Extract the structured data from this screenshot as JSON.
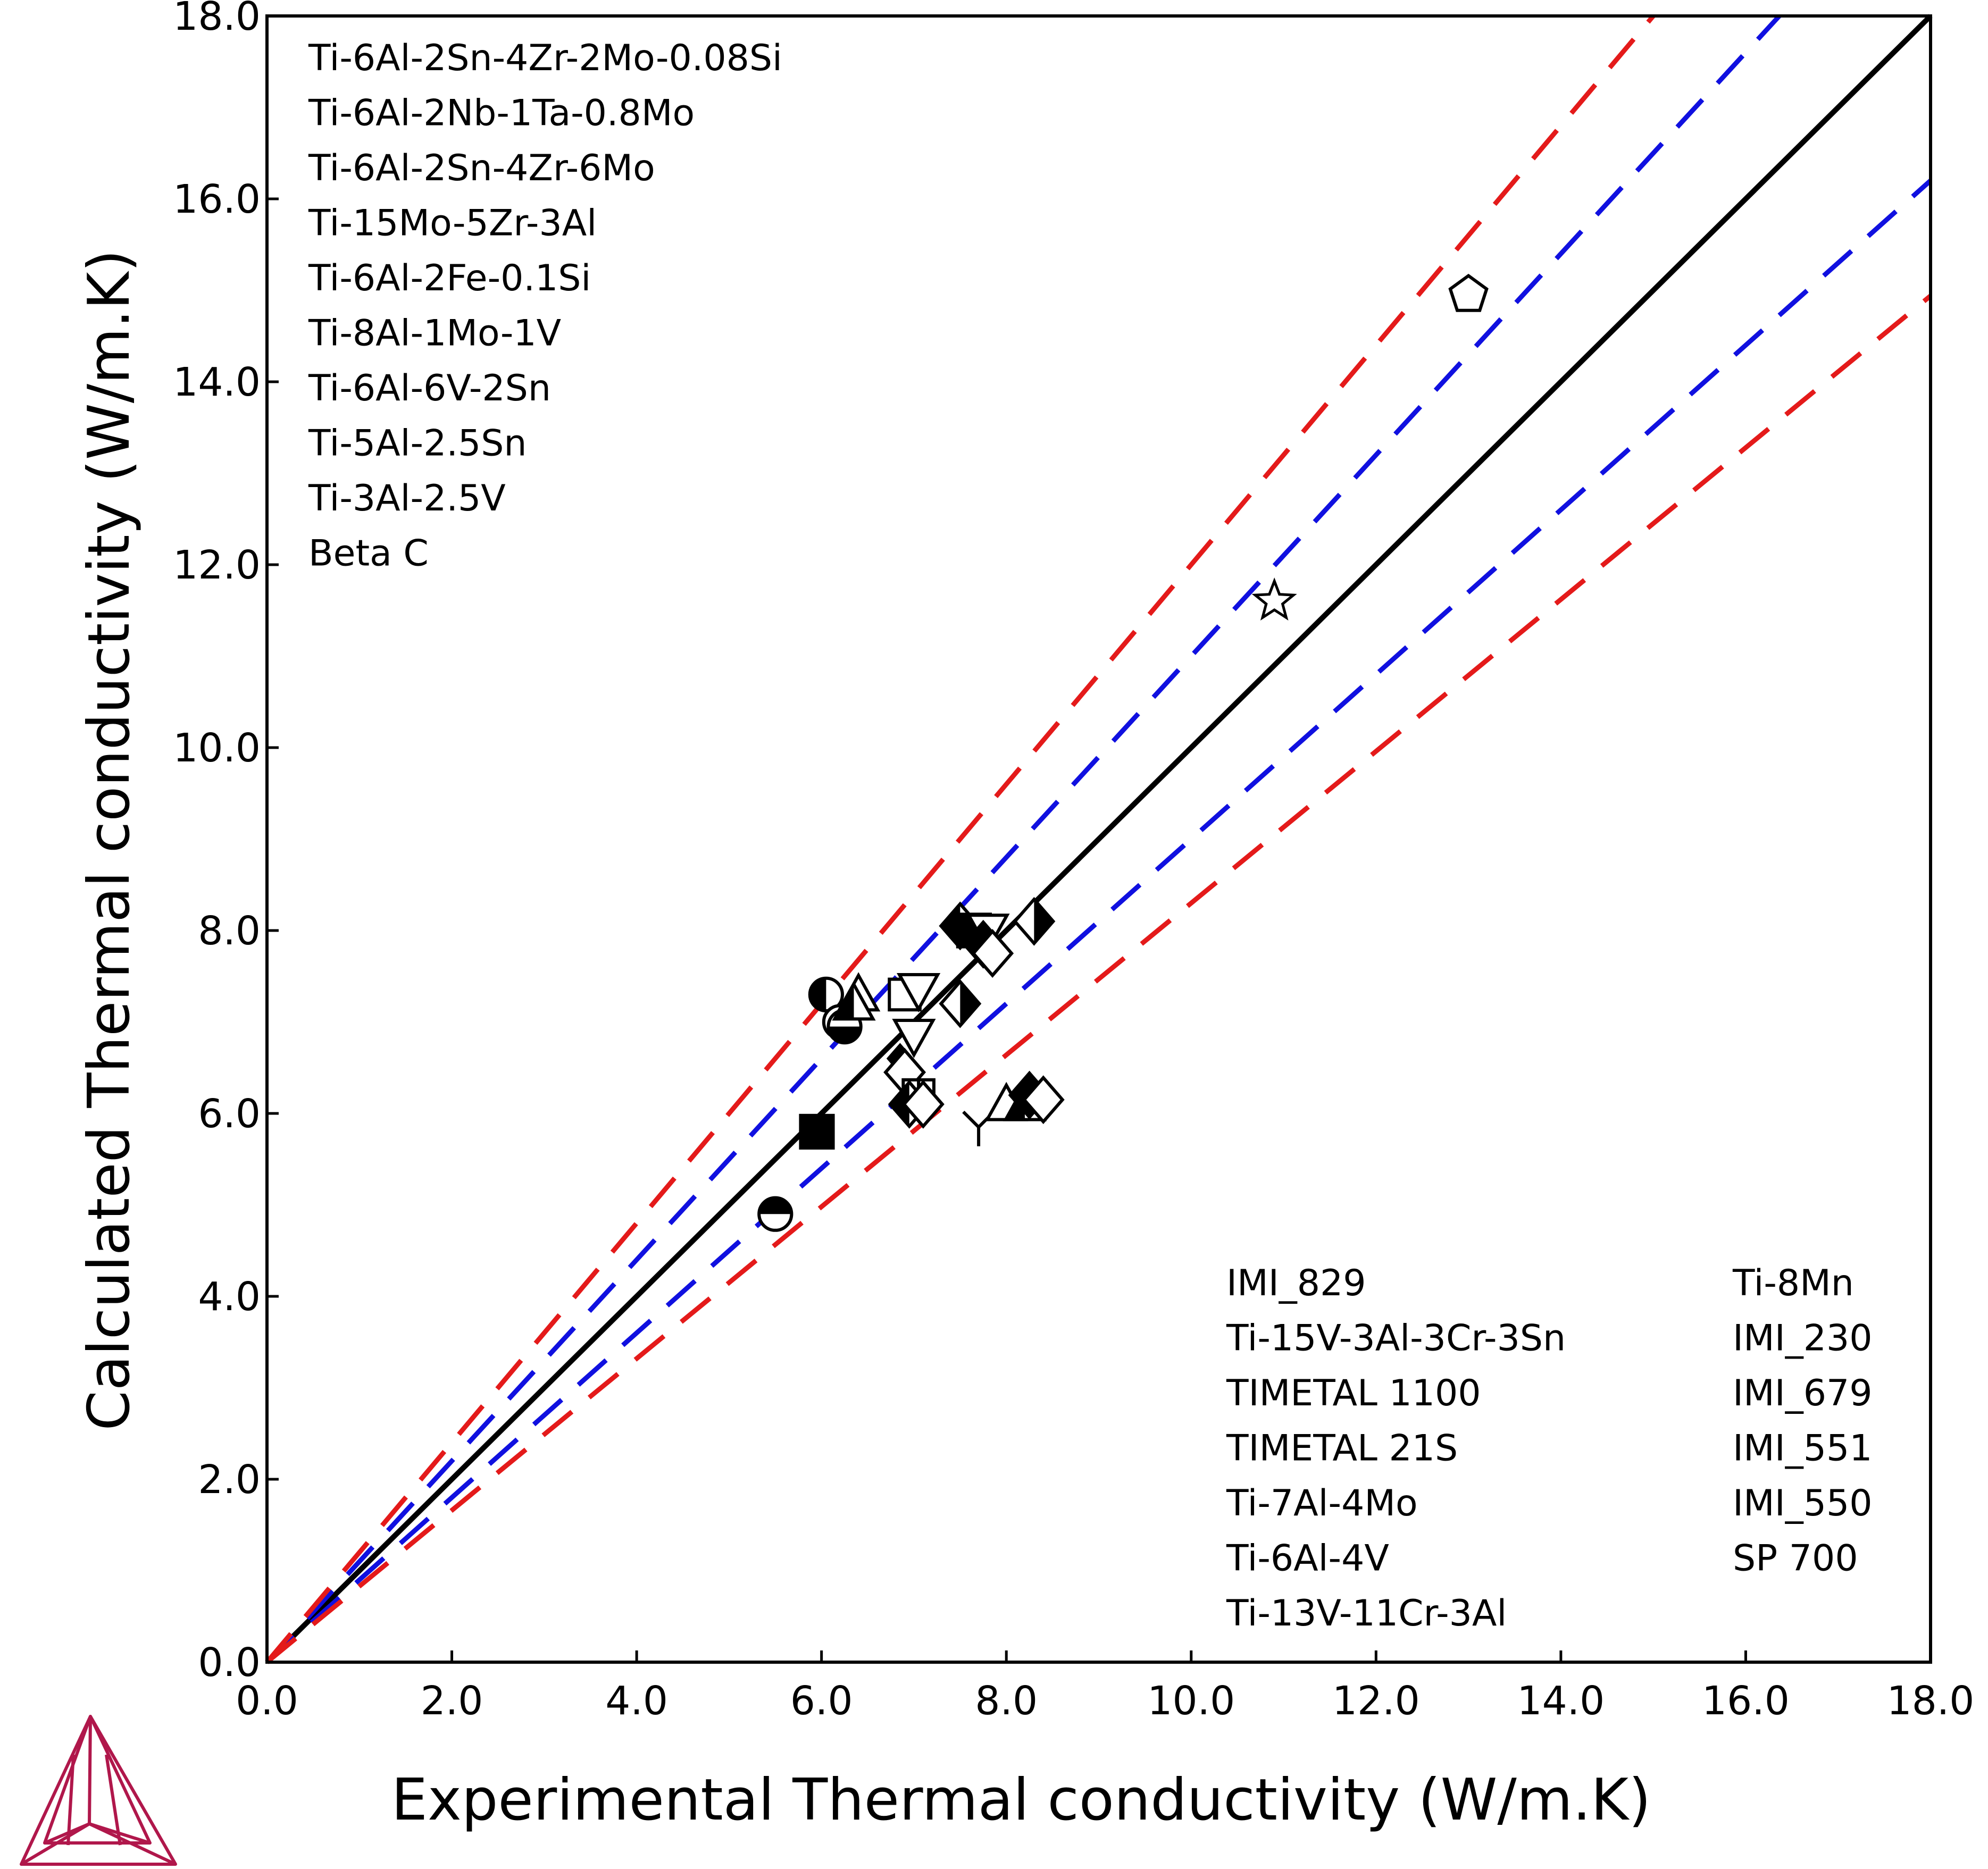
{
  "chart_data": {
    "type": "scatter",
    "xlabel": "Experimental Thermal conductivity (W/m.K)",
    "ylabel": "Calculated Thermal conductivity (W/m.K)",
    "xlim": [
      0,
      18
    ],
    "ylim": [
      0,
      18
    ],
    "x_ticks": [
      "0.0",
      "2.0",
      "4.0",
      "6.0",
      "8.0",
      "10.0",
      "12.0",
      "14.0",
      "16.0",
      "18.0"
    ],
    "y_ticks": [
      "0.0",
      "2.0",
      "4.0",
      "6.0",
      "8.0",
      "10.0",
      "12.0",
      "14.0",
      "16.0",
      "18.0"
    ],
    "grid": false,
    "reference_lines": [
      {
        "kind": "parity",
        "slope": 1.0,
        "style": "solid",
        "color": "#000000"
      },
      {
        "kind": "+10%",
        "slope": 1.1,
        "style": "dashed",
        "color": "#1010e0"
      },
      {
        "kind": "-10%",
        "slope": 0.9,
        "style": "dashed",
        "color": "#1010e0"
      },
      {
        "kind": "+20%",
        "slope": 1.2,
        "style": "dashed",
        "color": "#e41a1a"
      },
      {
        "kind": "-20%",
        "slope": 0.83,
        "style": "dashed",
        "color": "#e41a1a"
      }
    ],
    "legend_left": [
      "Ti-6Al-2Sn-4Zr-2Mo-0.08Si",
      "Ti-6Al-2Nb-1Ta-0.8Mo",
      "Ti-6Al-2Sn-4Zr-6Mo",
      "Ti-15Mo-5Zr-3Al",
      "Ti-6Al-2Fe-0.1Si",
      "Ti-8Al-1Mo-1V",
      "Ti-6Al-6V-2Sn",
      "Ti-5Al-2.5Sn",
      "Ti-3Al-2.5V",
      "Beta C"
    ],
    "legend_mid": [
      "IMI_829",
      "Ti-15V-3Al-3Cr-3Sn",
      "TIMETAL 1100",
      "TIMETAL 21S",
      "Ti-7Al-4Mo",
      "Ti-6Al-4V",
      "Ti-13V-11Cr-3Al"
    ],
    "legend_right": [
      "Ti-8Mn",
      "IMI_230",
      "IMI_679",
      "IMI_551",
      "IMI_550",
      "SP 700"
    ],
    "points": [
      {
        "x": 13.0,
        "y": 14.95,
        "marker": "pentagon-open"
      },
      {
        "x": 10.9,
        "y": 11.6,
        "marker": "star-open"
      },
      {
        "x": 6.05,
        "y": 7.3,
        "marker": "circle-left-half"
      },
      {
        "x": 6.2,
        "y": 7.0,
        "marker": "circle-open"
      },
      {
        "x": 6.25,
        "y": 6.95,
        "marker": "circle-bottom-half"
      },
      {
        "x": 6.4,
        "y": 7.3,
        "marker": "triangle-open"
      },
      {
        "x": 6.35,
        "y": 7.2,
        "marker": "triangle-half"
      },
      {
        "x": 6.9,
        "y": 7.3,
        "marker": "square-open"
      },
      {
        "x": 7.05,
        "y": 7.35,
        "marker": "triangle-down-open"
      },
      {
        "x": 7.0,
        "y": 6.85,
        "marker": "triangle-down-open"
      },
      {
        "x": 6.85,
        "y": 6.6,
        "marker": "diamond-small-filled"
      },
      {
        "x": 6.9,
        "y": 6.45,
        "marker": "diamond-open"
      },
      {
        "x": 7.05,
        "y": 6.2,
        "marker": "square-cross-open"
      },
      {
        "x": 6.95,
        "y": 6.1,
        "marker": "diamond-left-half"
      },
      {
        "x": 7.1,
        "y": 6.1,
        "marker": "diamond-open"
      },
      {
        "x": 5.95,
        "y": 5.8,
        "marker": "square-filled"
      },
      {
        "x": 5.5,
        "y": 4.9,
        "marker": "circle-top-half"
      },
      {
        "x": 7.5,
        "y": 8.05,
        "marker": "diamond-left-half"
      },
      {
        "x": 7.65,
        "y": 8.0,
        "marker": "square-filled"
      },
      {
        "x": 7.8,
        "y": 8.0,
        "marker": "triangle-down-open"
      },
      {
        "x": 7.75,
        "y": 7.85,
        "marker": "diamond-filled"
      },
      {
        "x": 7.85,
        "y": 7.75,
        "marker": "diamond-open"
      },
      {
        "x": 8.3,
        "y": 8.1,
        "marker": "diamond-right-half"
      },
      {
        "x": 7.5,
        "y": 7.2,
        "marker": "diamond-right-half"
      },
      {
        "x": 7.7,
        "y": 5.85,
        "marker": "y-mark"
      },
      {
        "x": 8.0,
        "y": 6.1,
        "marker": "triangle-open"
      },
      {
        "x": 8.2,
        "y": 6.1,
        "marker": "triangle-half"
      },
      {
        "x": 8.25,
        "y": 6.2,
        "marker": "diamond-filled"
      },
      {
        "x": 8.4,
        "y": 6.15,
        "marker": "diamond-open"
      }
    ]
  },
  "colors": {
    "axis": "#000000",
    "parity": "#000000",
    "ten_percent": "#1010e0",
    "twenty_percent": "#e41a1a",
    "logo": "#b0174b"
  },
  "logo_icon": "tetrahedron-logo-icon"
}
